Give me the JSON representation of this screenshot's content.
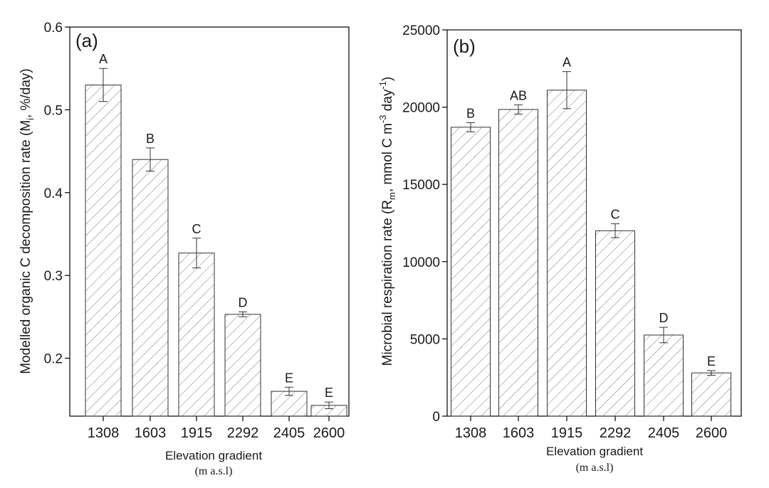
{
  "chart_data": [
    {
      "type": "bar",
      "panel_label": "(a)",
      "categories": [
        "1308",
        "1603",
        "1915",
        "2292",
        "2405",
        "2600"
      ],
      "values": [
        0.53,
        0.44,
        0.327,
        0.253,
        0.16,
        0.143
      ],
      "errors": [
        0.02,
        0.014,
        0.018,
        0.003,
        0.005,
        0.004
      ],
      "letters": [
        "A",
        "B",
        "C",
        "D",
        "E",
        "E"
      ],
      "ylim": [
        0.13,
        0.6
      ],
      "yticks": [
        0.2,
        0.3,
        0.4,
        0.5,
        0.6
      ],
      "ytick_labels": [
        "0.2",
        "0.3",
        "0.4",
        "0.5",
        "0.6"
      ],
      "ylabel_pre": "Modelled organic C decomposition rate (M",
      "ylabel_sub": "i",
      "ylabel_post": ", %/day)",
      "xlabel": "Elevation gradient",
      "xlabel_unit": "(m a.s.l)",
      "bar_fill": "#ffffff",
      "hatch_color": "#777777"
    },
    {
      "type": "bar",
      "panel_label": "(b)",
      "categories": [
        "1308",
        "1603",
        "1915",
        "2292",
        "2405",
        "2600"
      ],
      "values": [
        18700,
        19850,
        21100,
        12000,
        5250,
        2800
      ],
      "errors": [
        300,
        300,
        1200,
        450,
        500,
        150
      ],
      "letters": [
        "B",
        "AB",
        "A",
        "C",
        "D",
        "E"
      ],
      "ylim": [
        0,
        25000
      ],
      "yticks": [
        0,
        5000,
        10000,
        15000,
        20000,
        25000
      ],
      "ytick_labels": [
        "0",
        "5000",
        "10000",
        "15000",
        "20000",
        "25000"
      ],
      "ylabel_pre": "Microbial respiration rate (R",
      "ylabel_sub": "m",
      "ylabel_mid": ", mmol C m",
      "ylabel_sup1": "-3",
      "ylabel_mid2": " day",
      "ylabel_sup2": "-1",
      "ylabel_post": ")",
      "xlabel": "Elevation gradient",
      "xlabel_unit": "(m a.s.l)",
      "bar_fill": "#ffffff",
      "hatch_color": "#777777"
    }
  ]
}
